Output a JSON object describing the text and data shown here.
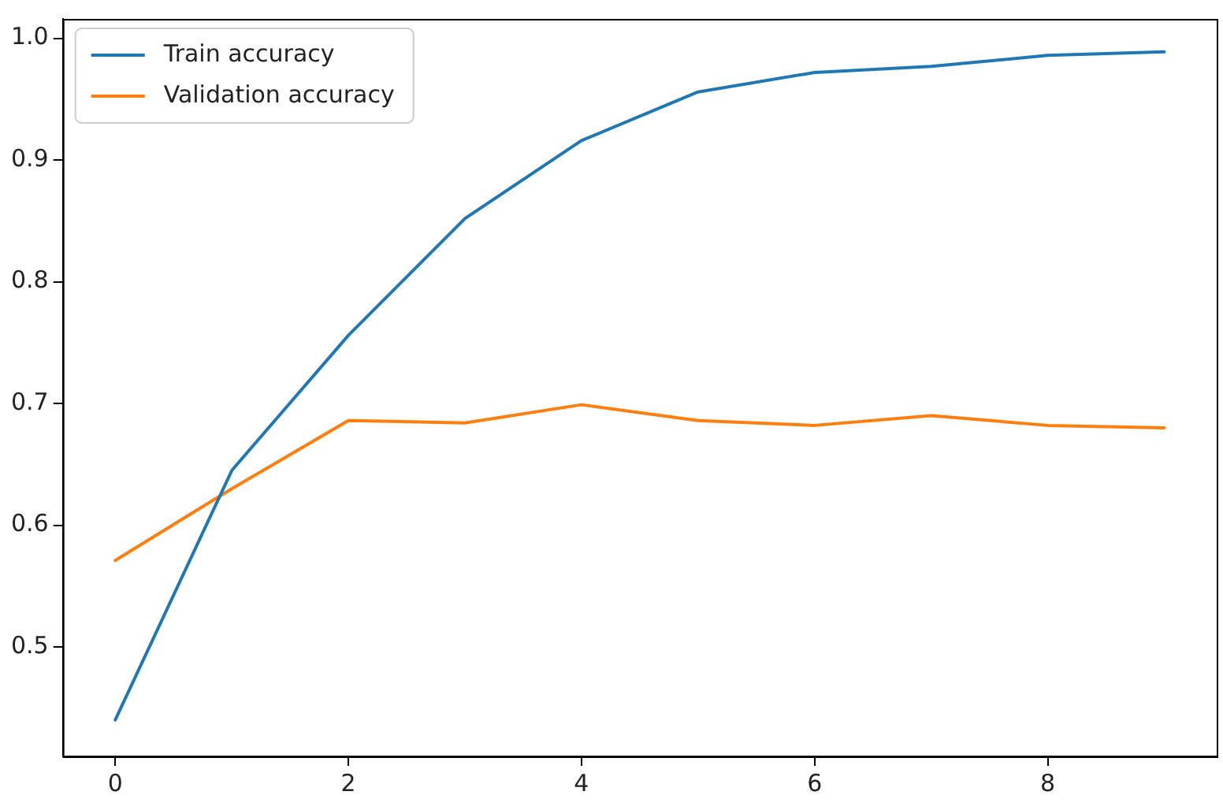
{
  "chart_data": {
    "type": "line",
    "x": [
      0,
      1,
      2,
      3,
      4,
      5,
      6,
      7,
      8,
      9
    ],
    "series": [
      {
        "name": "Train accuracy",
        "color": "#1f77b4",
        "values": [
          0.44,
          0.645,
          0.756,
          0.852,
          0.916,
          0.956,
          0.972,
          0.977,
          0.986,
          0.989
        ]
      },
      {
        "name": "Validation accuracy",
        "color": "#ff7f0e",
        "values": [
          0.571,
          0.63,
          0.686,
          0.684,
          0.699,
          0.686,
          0.682,
          0.69,
          0.682,
          0.68
        ]
      }
    ],
    "xlim": [
      -0.45,
      9.45
    ],
    "xticks": [
      0,
      2,
      4,
      6,
      8
    ],
    "ylim": [
      0.41,
      1.016
    ],
    "yticks": [
      0.5,
      0.6,
      0.7,
      0.8,
      0.9,
      {
        "value": 1,
        "label": "1.0"
      }
    ],
    "grid": false,
    "legend": "top left",
    "marker": "none",
    "line_style": "solid"
  }
}
